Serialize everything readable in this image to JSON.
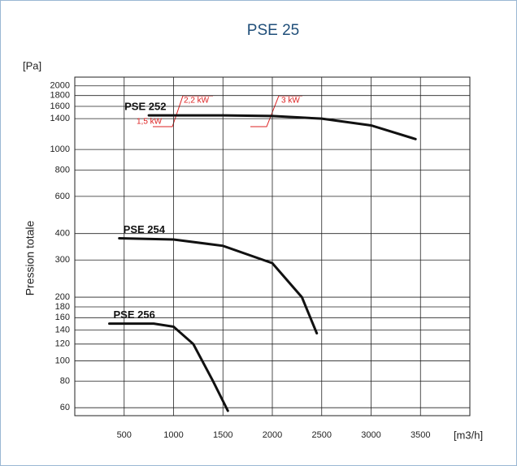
{
  "chart_data": {
    "type": "line",
    "title": "PSE 25",
    "y_label": "Pression totale",
    "y_unit": "[Pa]",
    "x_unit": "[m3/h]",
    "log_y": true,
    "grid": true,
    "xlim": [
      0,
      4000
    ],
    "xticks": [
      500,
      1000,
      1500,
      2000,
      2500,
      3000,
      3500
    ],
    "ylim": [
      55,
      2200
    ],
    "yticks": [
      60,
      80,
      100,
      120,
      140,
      160,
      180,
      200,
      300,
      400,
      600,
      800,
      1000,
      1400,
      1600,
      1800,
      2000
    ],
    "series": [
      {
        "name": "PSE 252",
        "color": "#111111",
        "x": [
          750,
          1000,
          1500,
          2000,
          2500,
          3000,
          3450
        ],
        "values": [
          1450,
          1450,
          1450,
          1440,
          1400,
          1300,
          1120
        ]
      },
      {
        "name": "PSE 254",
        "color": "#111111",
        "x": [
          450,
          1000,
          1500,
          2000,
          2300,
          2450
        ],
        "values": [
          380,
          375,
          350,
          290,
          200,
          135
        ]
      },
      {
        "name": "PSE 256",
        "color": "#111111",
        "x": [
          350,
          800,
          1000,
          1200,
          1400,
          1550
        ],
        "values": [
          150,
          150,
          145,
          120,
          80,
          58
        ]
      }
    ],
    "annotations": [
      "2,2 kW",
      "1,5 kW",
      "3 kW"
    ]
  }
}
